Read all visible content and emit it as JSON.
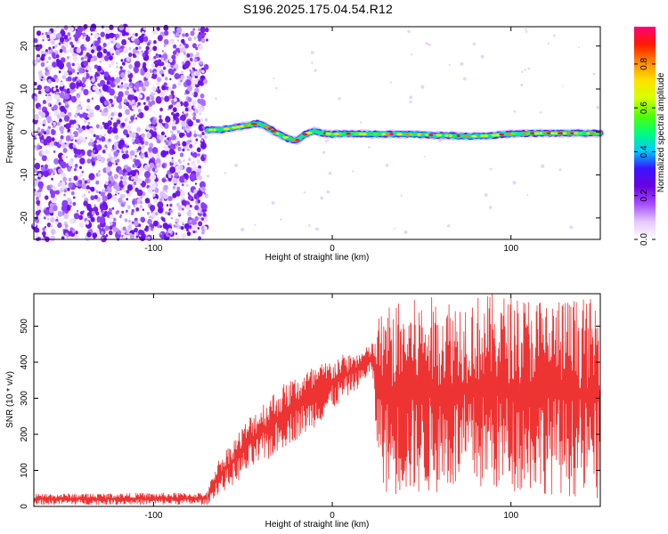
{
  "title": "S196.2025.175.04.54.R12",
  "chart_data": [
    {
      "type": "heatmap",
      "xlabel": "Height of straight line (km)",
      "ylabel": "Frequency (Hz)",
      "xlim": [
        -167,
        150
      ],
      "ylim": [
        -25,
        24.5
      ],
      "xticks": [
        -100,
        0,
        100
      ],
      "xtick_labels": [
        "-100",
        "0",
        "100"
      ],
      "yticks": [
        -20,
        -10,
        0,
        10,
        20
      ],
      "ytick_labels": [
        "-20",
        "-10",
        "0",
        "10",
        "20"
      ],
      "colorbar": {
        "label": "Normalized spectral amplitude",
        "range": [
          0,
          0.97
        ],
        "ticks": [
          0,
          0.2,
          0.4,
          0.6,
          0.8
        ],
        "tick_labels": [
          "0.0",
          "0.2",
          "0.4",
          "0.6",
          "0.8"
        ],
        "colors": [
          "#ffffff",
          "#e3c8ff",
          "#a64dff",
          "#6a00e0",
          "#3a14ff",
          "#00c8ff",
          "#00ff7a",
          "#55ff00",
          "#d8ff00",
          "#ffe000",
          "#ff8800",
          "#ff1a00",
          "#ff007a"
        ]
      },
      "noise_region_x": [
        -167,
        -70
      ],
      "ridge": {
        "x": [
          -70,
          -62,
          -55,
          -48,
          -42,
          -38,
          -34,
          -30,
          -25,
          -20,
          -15,
          -10,
          -5,
          0,
          10,
          20,
          40,
          60,
          80,
          90,
          100,
          120,
          150
        ],
        "y": [
          0.5,
          0.5,
          1.0,
          1.5,
          2.0,
          1.5,
          0.5,
          -0.5,
          -1.5,
          -2.0,
          -0.5,
          0.2,
          -0.3,
          -0.5,
          -0.4,
          -0.5,
          -0.5,
          -0.8,
          -1.0,
          -0.8,
          -0.4,
          -0.3,
          -0.3
        ]
      },
      "grid": false
    },
    {
      "type": "line",
      "xlabel": "Height of straight line (km)",
      "ylabel": "SNR (10 * v/v)",
      "xlim": [
        -167,
        150
      ],
      "ylim": [
        0,
        590
      ],
      "xticks": [
        -100,
        0,
        100
      ],
      "xtick_labels": [
        "-100",
        "0",
        "100"
      ],
      "yticks": [
        0,
        100,
        200,
        300,
        400,
        500
      ],
      "ytick_labels": [
        "0",
        "100",
        "200",
        "300",
        "400",
        "500"
      ],
      "series": [
        {
          "color": "#ee3333",
          "envelope": {
            "x": [
              -167,
              -70,
              -65,
              -55,
              -45,
              -35,
              -25,
              -15,
              -5,
              5,
              15,
              22,
              25,
              30,
              50,
              70,
              90,
              110,
              130,
              150
            ],
            "low": [
              5,
              5,
              30,
              60,
              100,
              130,
              170,
              200,
              240,
              290,
              330,
              370,
              150,
              30,
              30,
              40,
              40,
              40,
              30,
              10
            ],
            "high": [
              35,
              38,
              120,
              190,
              260,
              310,
              350,
              380,
              400,
              420,
              430,
              450,
              520,
              560,
              580,
              585,
              590,
              585,
              580,
              575
            ]
          }
        }
      ],
      "grid": false
    }
  ]
}
